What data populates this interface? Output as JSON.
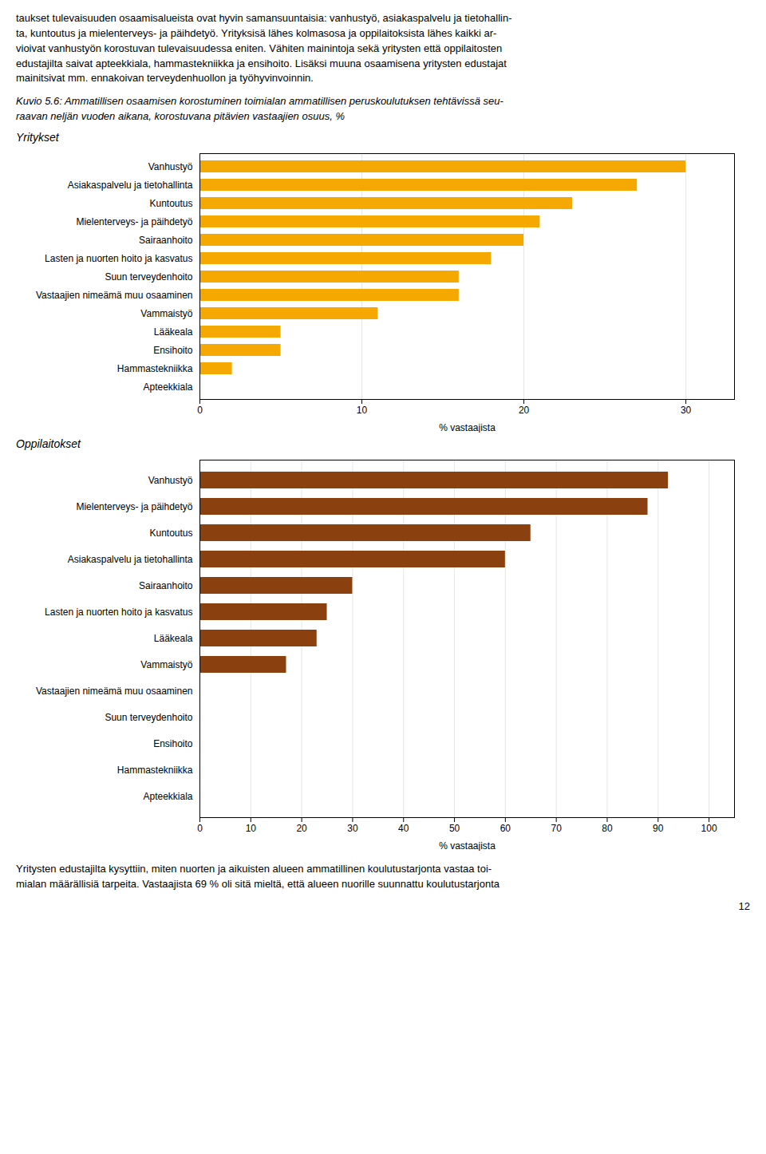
{
  "chart_data": [
    {
      "type": "bar",
      "orientation": "horizontal",
      "title": "Kuvio 5.6: Ammatillisen osaamisen korostuminen toimialan ammatillisen peruskoulutuksen tehtävissä seu-\nraavan neljän vuoden aikana, korostuvana pitävien vastaajien osuus, %",
      "subtitle": "Yritykset",
      "annotations": [
        "taukset tulevaisuuden osaamisalueista ovat hyvin samansuuntaisia: vanhustyö, asiakaspalvelu ja tietohallin-\nta, kuntoutus ja mielenterveys- ja päihdetyö. Yrityksisä lähes kolmasosa ja oppilaitoksista lähes kaikki ar-\nvioivat vanhustyön korostuvan tulevaisuudessa eniten. Vähiten mainintoja sekä yritysten että oppilaitosten\nedustajilta saivat apteekkiala, hammastekniikka ja ensihoito. Lisäksi muuna osaamisena yritysten edustajat\nmainitsivat mm. ennakoivan terveydenhuollon ja työhyvinvoinnin."
      ],
      "categories": [
        "Vanhustyö",
        "Asiakaspalvelu ja tietohallinta",
        "Kuntoutus",
        "Mielenterveys- ja päihdetyö",
        "Sairaanhoito",
        "Lasten ja nuorten hoito ja kasvatus",
        "Suun terveydenhoito",
        "Vastaajien nimeämä muu osaaminen",
        "Vammaistyö",
        "Lääkeala",
        "Ensihoito",
        "Hammastekniikka",
        "Apteekkiala"
      ],
      "values": [
        30,
        27,
        23,
        21,
        20,
        18,
        16,
        16,
        11,
        5,
        5,
        2,
        0
      ],
      "color": "#F5A800",
      "xlabel": "% vastaajista",
      "xlim": [
        0,
        33
      ],
      "xticks": [
        0,
        10,
        20,
        30
      ],
      "grid": true
    },
    {
      "type": "bar",
      "orientation": "horizontal",
      "subtitle": "Oppilaitokset",
      "annotations": [
        "Yritysten edustajilta kysyttiin, miten nuorten ja aikuisten alueen ammatillinen koulutustarjonta vastaa toi-\nmialan määrällisiä tarpeita. Vastaajista 69 % oli sitä mieltä, että alueen nuorille suunnattu koulutustarjonta",
        "12"
      ],
      "categories": [
        "Vanhustyö",
        "Mielenterveys- ja päihdetyö",
        "Kuntoutus",
        "Asiakaspalvelu ja tietohallinta",
        "Sairaanhoito",
        "Lasten ja nuorten hoito ja kasvatus",
        "Lääkeala",
        "Vammaistyö",
        "Vastaajien nimeämä muu osaaminen",
        "Suun terveydenhoito",
        "Ensihoito",
        "Hammastekniikka",
        "Apteekkiala"
      ],
      "values": [
        92,
        88,
        65,
        60,
        30,
        25,
        23,
        17,
        0,
        0,
        0,
        0,
        0
      ],
      "color": "#8B4010",
      "xlabel": "% vastaajista",
      "xlim": [
        0,
        105
      ],
      "xticks": [
        0,
        10,
        20,
        30,
        40,
        50,
        60,
        70,
        80,
        90,
        100
      ],
      "grid": true
    }
  ]
}
